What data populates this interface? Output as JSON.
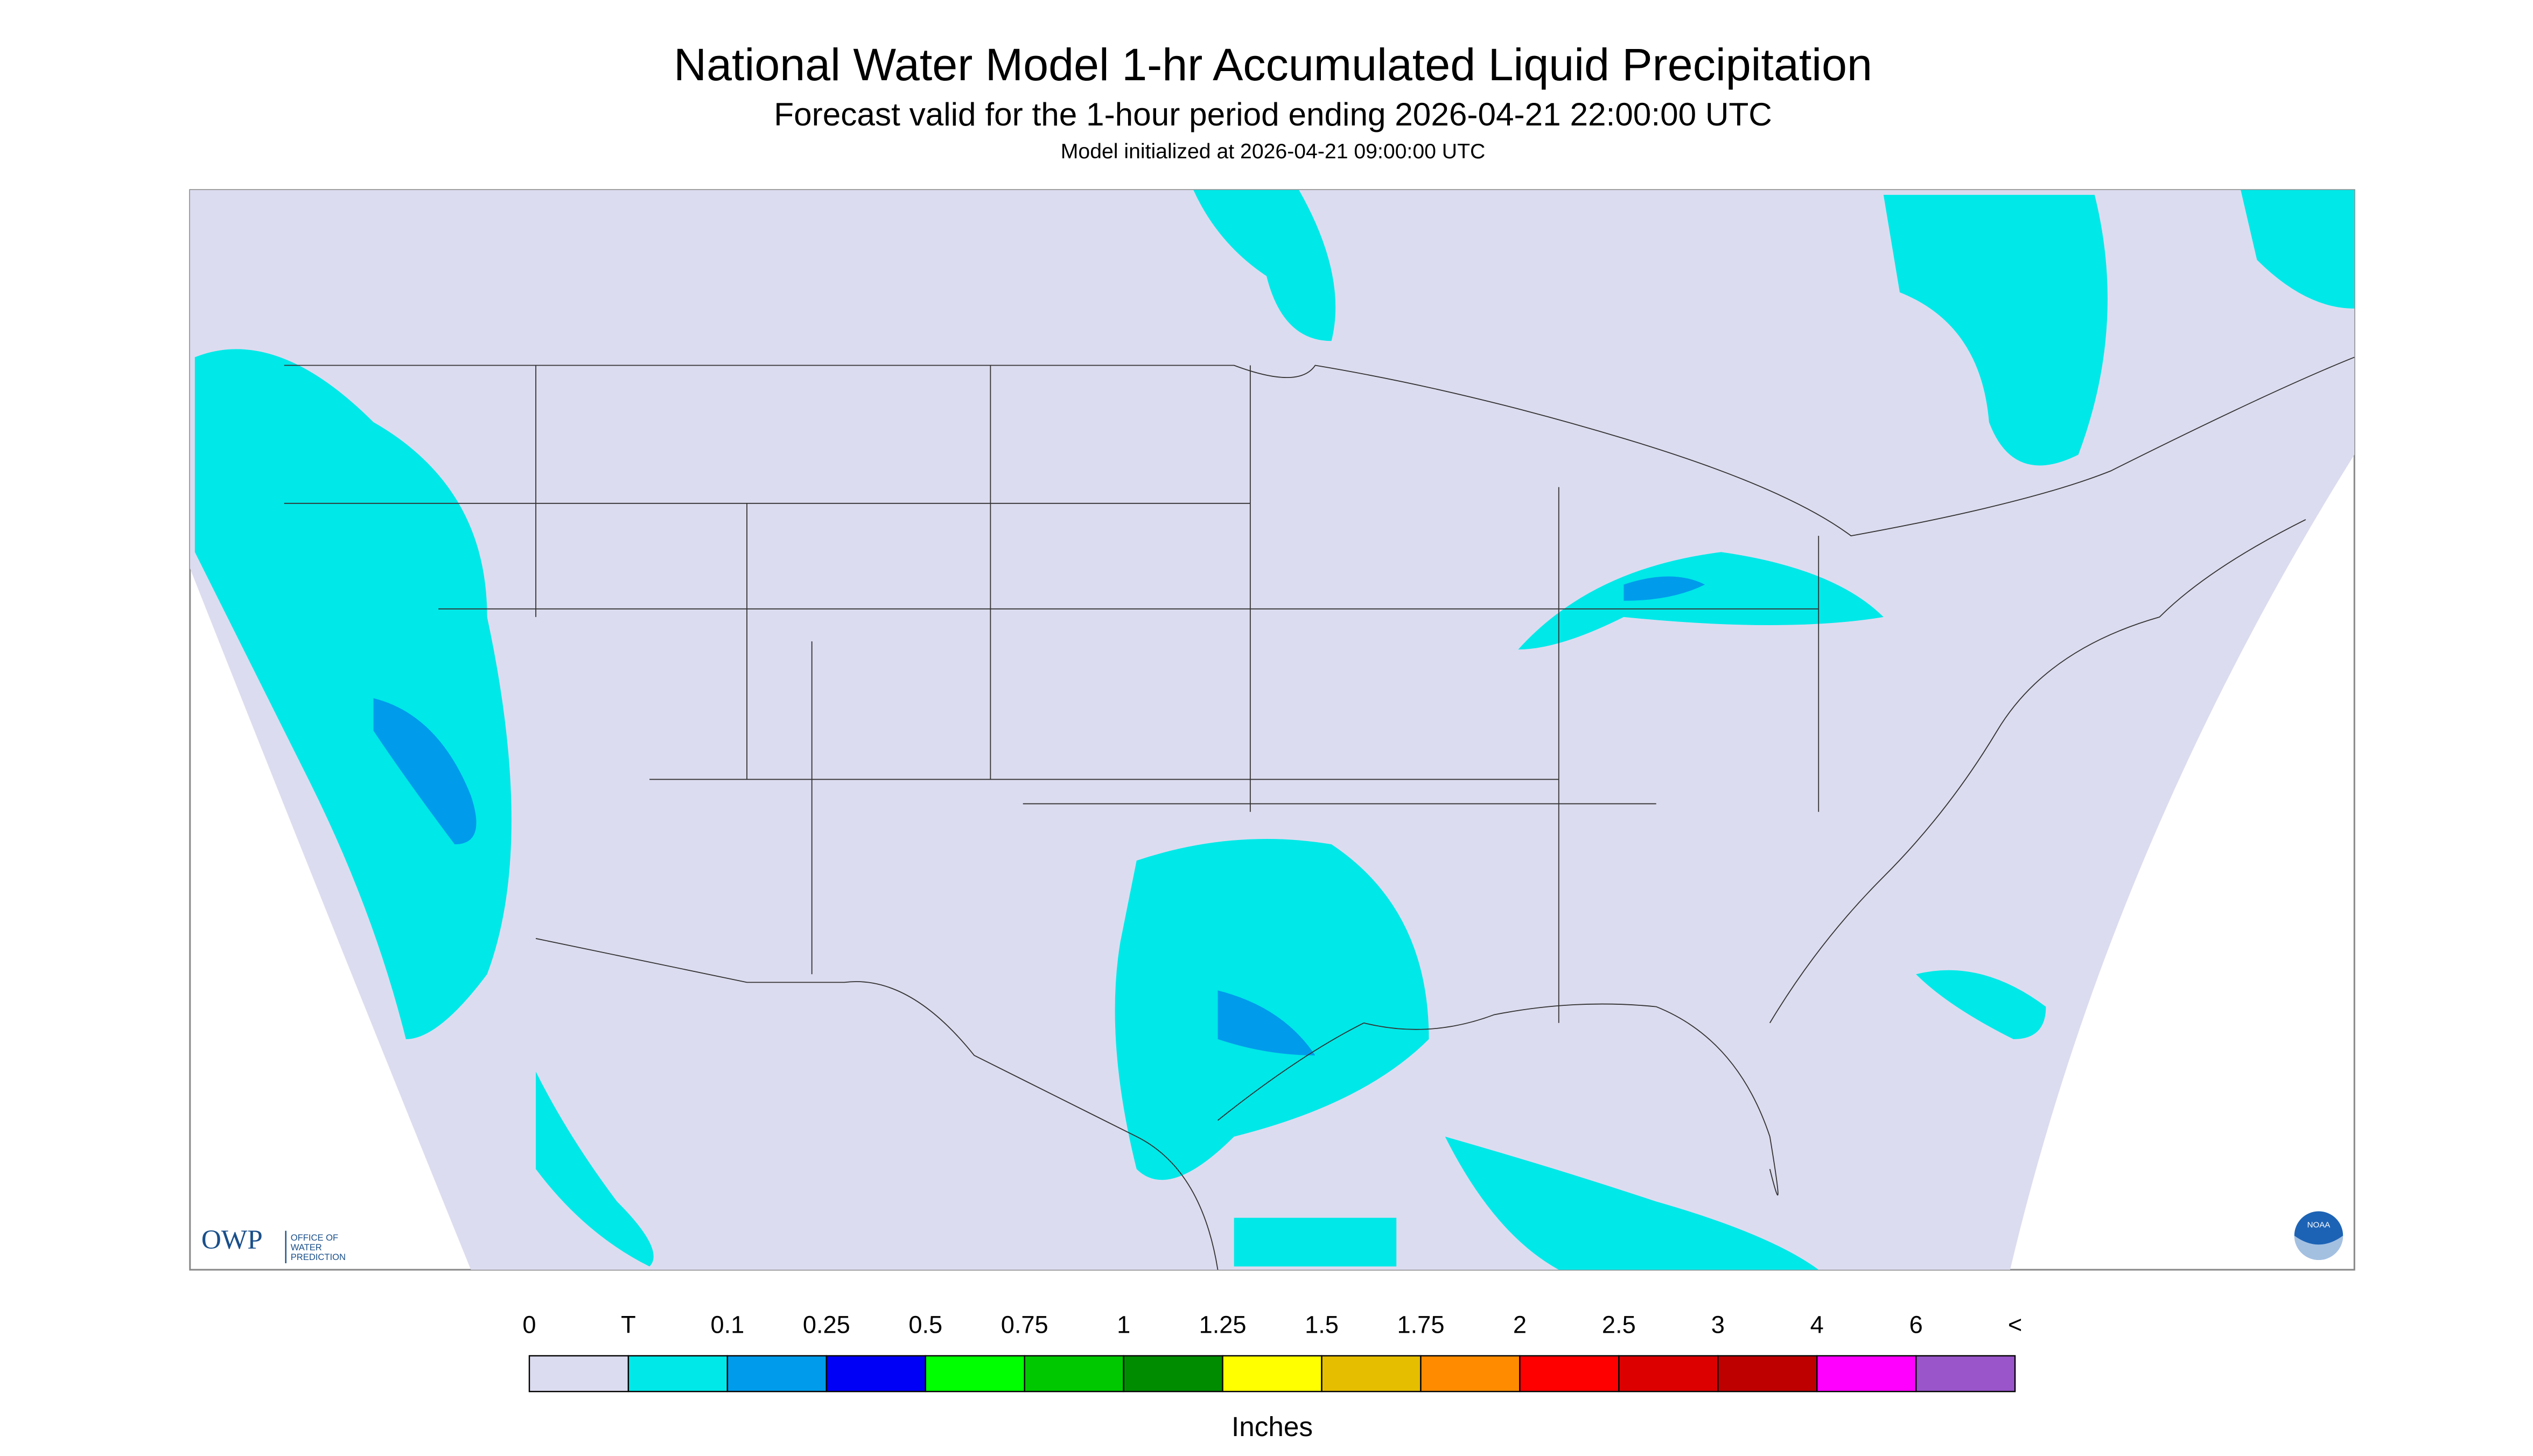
{
  "header": {
    "title": "National Water Model 1-hr Accumulated Liquid Precipitation",
    "subtitle": "Forecast valid for the 1-hour period ending 2026-04-21 22:00:00 UTC",
    "note": "Model initialized at 2026-04-21 09:00:00 UTC"
  },
  "logos": {
    "owp": "OWP",
    "owp_name": [
      "OFFICE OF",
      "WATER",
      "PREDICTION"
    ],
    "noaa": "NOAA"
  },
  "legend": {
    "labels": [
      "0",
      "T",
      "0.1",
      "0.25",
      "0.5",
      "0.75",
      "1",
      "1.25",
      "1.5",
      "1.75",
      "2",
      "2.5",
      "3",
      "4",
      "6",
      "<"
    ],
    "colors": [
      "#dcdcf0",
      "#00e8e8",
      "#009ceb",
      "#0000f6",
      "#00ff00",
      "#00c800",
      "#008c00",
      "#ffff00",
      "#e6be00",
      "#ff8c00",
      "#ff0000",
      "#dc0000",
      "#be0000",
      "#ff00ff",
      "#9955c9"
    ],
    "unit": "Inches"
  }
}
